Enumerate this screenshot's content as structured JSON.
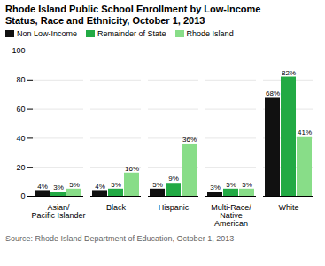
{
  "chart_data": {
    "type": "bar",
    "title": "Rhode Island Public School Enrollment by Low-Income\nStatus, Race and Ethnicity, October 1, 2013",
    "categories": [
      "Asian/\nPacific Islander",
      "Black",
      "Hispanic",
      "Multi-Race/\nNative\nAmerican",
      "White"
    ],
    "series": [
      {
        "name": "Non Low-Income",
        "color": "#111111",
        "values": [
          4,
          4,
          5,
          3,
          68
        ],
        "value_labels": [
          "4%",
          "4%",
          "5%",
          "3%",
          "68%"
        ]
      },
      {
        "name": "Remainder of State",
        "color": "#22aa44",
        "values": [
          3,
          5,
          9,
          5,
          82
        ],
        "value_labels": [
          "3%",
          "5%",
          "9%",
          "5%",
          "82%"
        ]
      },
      {
        "name": "Rhode Island",
        "color": "#88dd88",
        "values": [
          5,
          16,
          36,
          5,
          41
        ],
        "value_labels": [
          "5%",
          "16%",
          "36%",
          "5%",
          "41%"
        ]
      }
    ],
    "ylim": [
      0,
      100
    ],
    "yticks": [
      0,
      20,
      40,
      60,
      80,
      100
    ],
    "grid": true,
    "legend": "upper left",
    "data_labels": true,
    "annotations": [
      "Source: Rhode Island Department of Education, October 1, 2013"
    ]
  }
}
